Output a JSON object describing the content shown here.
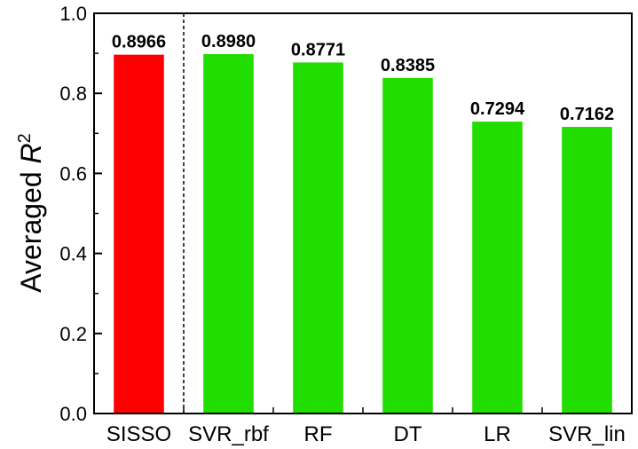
{
  "chart_data": {
    "type": "bar",
    "categories": [
      "SISSO",
      "SVR_rbf",
      "RF",
      "DT",
      "LR",
      "SVR_lin"
    ],
    "values": [
      0.8966,
      0.898,
      0.8771,
      0.8385,
      0.7294,
      0.7162
    ],
    "value_labels": [
      "0.8966",
      "0.8980",
      "0.8771",
      "0.8385",
      "0.7294",
      "0.7162"
    ],
    "bar_colors": [
      "#ff0000",
      "#22dd00",
      "#22dd00",
      "#22dd00",
      "#22dd00",
      "#22dd00"
    ],
    "ylabel": {
      "prefix": "Averaged ",
      "var": "R",
      "sup": "2"
    },
    "xlabel": "",
    "ylim": [
      0.0,
      1.0
    ],
    "yticks": [
      0.0,
      0.2,
      0.4,
      0.6,
      0.8,
      1.0
    ],
    "ytick_labels": [
      "0.0",
      "0.2",
      "0.4",
      "0.6",
      "0.8",
      "1.0"
    ],
    "separator_after_index": 0,
    "grid": false,
    "legend": "none"
  }
}
